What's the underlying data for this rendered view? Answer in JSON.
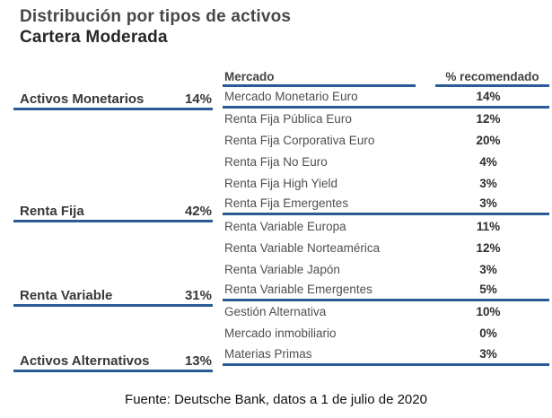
{
  "title": {
    "line1": "Distribución por tipos de activos",
    "line2": "Cartera Moderada"
  },
  "summary": {
    "items": [
      {
        "label": "Activos Monetarios",
        "value": "14%"
      },
      {
        "label": "Renta Fija",
        "value": "42%"
      },
      {
        "label": "Renta Variable",
        "value": "31%"
      },
      {
        "label": "Activos Alternativos",
        "value": "13%"
      }
    ]
  },
  "table": {
    "headers": {
      "market": "Mercado",
      "recommended": "% recomendado"
    },
    "rows": [
      {
        "label": "Mercado Monetario Euro",
        "value": "14%",
        "sep": "group-end"
      },
      {
        "label": "Renta Fija Pública Euro",
        "value": "12%"
      },
      {
        "label": "Renta Fija Corporativa Euro",
        "value": "20%"
      },
      {
        "label": "Renta Fija No Euro",
        "value": "4%"
      },
      {
        "label": "Renta Fija High Yield",
        "value": "3%"
      },
      {
        "label": "Renta Fija Emergentes",
        "value": "3%",
        "sep": "group-end"
      },
      {
        "label": "Renta Variable Europa",
        "value": "11%"
      },
      {
        "label": "Renta Variable Norteamérica",
        "value": "12%"
      },
      {
        "label": "Renta Variable Japón",
        "value": "3%"
      },
      {
        "label": "Renta Variable Emergentes",
        "value": "5%",
        "sep": "group-end"
      },
      {
        "label": "Gestión Alternativa",
        "value": "10%"
      },
      {
        "label": "Mercado inmobiliario",
        "value": "0%"
      },
      {
        "label": "Materias Primas",
        "value": "3%",
        "sep": "group-end"
      }
    ]
  },
  "footer": {
    "source": "Fuente: Deutsche Bank, datos a 1 de julio de 2020"
  },
  "colors": {
    "accent_blue": "#2b5b97",
    "title_text": "#262626",
    "body_text": "#4f4f4f",
    "value_text": "#2e2e2e"
  },
  "chart_data": {
    "type": "table",
    "title": "Distribución por tipos de activos — Cartera Moderada",
    "columns": [
      "Mercado",
      "% recomendado"
    ],
    "groups": [
      {
        "category": "Activos Monetarios",
        "total_pct": 14,
        "rows": [
          [
            "Mercado Monetario Euro",
            14
          ]
        ]
      },
      {
        "category": "Renta Fija",
        "total_pct": 42,
        "rows": [
          [
            "Renta Fija Pública Euro",
            12
          ],
          [
            "Renta Fija Corporativa Euro",
            20
          ],
          [
            "Renta Fija No Euro",
            4
          ],
          [
            "Renta Fija High Yield",
            3
          ],
          [
            "Renta Fija Emergentes",
            3
          ]
        ]
      },
      {
        "category": "Renta Variable",
        "total_pct": 31,
        "rows": [
          [
            "Renta Variable Europa",
            11
          ],
          [
            "Renta Variable Norteamérica",
            12
          ],
          [
            "Renta Variable Japón",
            3
          ],
          [
            "Renta Variable Emergentes",
            5
          ]
        ]
      },
      {
        "category": "Activos Alternativos",
        "total_pct": 13,
        "rows": [
          [
            "Gestión Alternativa",
            10
          ],
          [
            "Mercado inmobiliario",
            0
          ],
          [
            "Materias Primas",
            3
          ]
        ]
      }
    ],
    "source": "Fuente: Deutsche Bank, datos a 1 de julio de 2020"
  }
}
